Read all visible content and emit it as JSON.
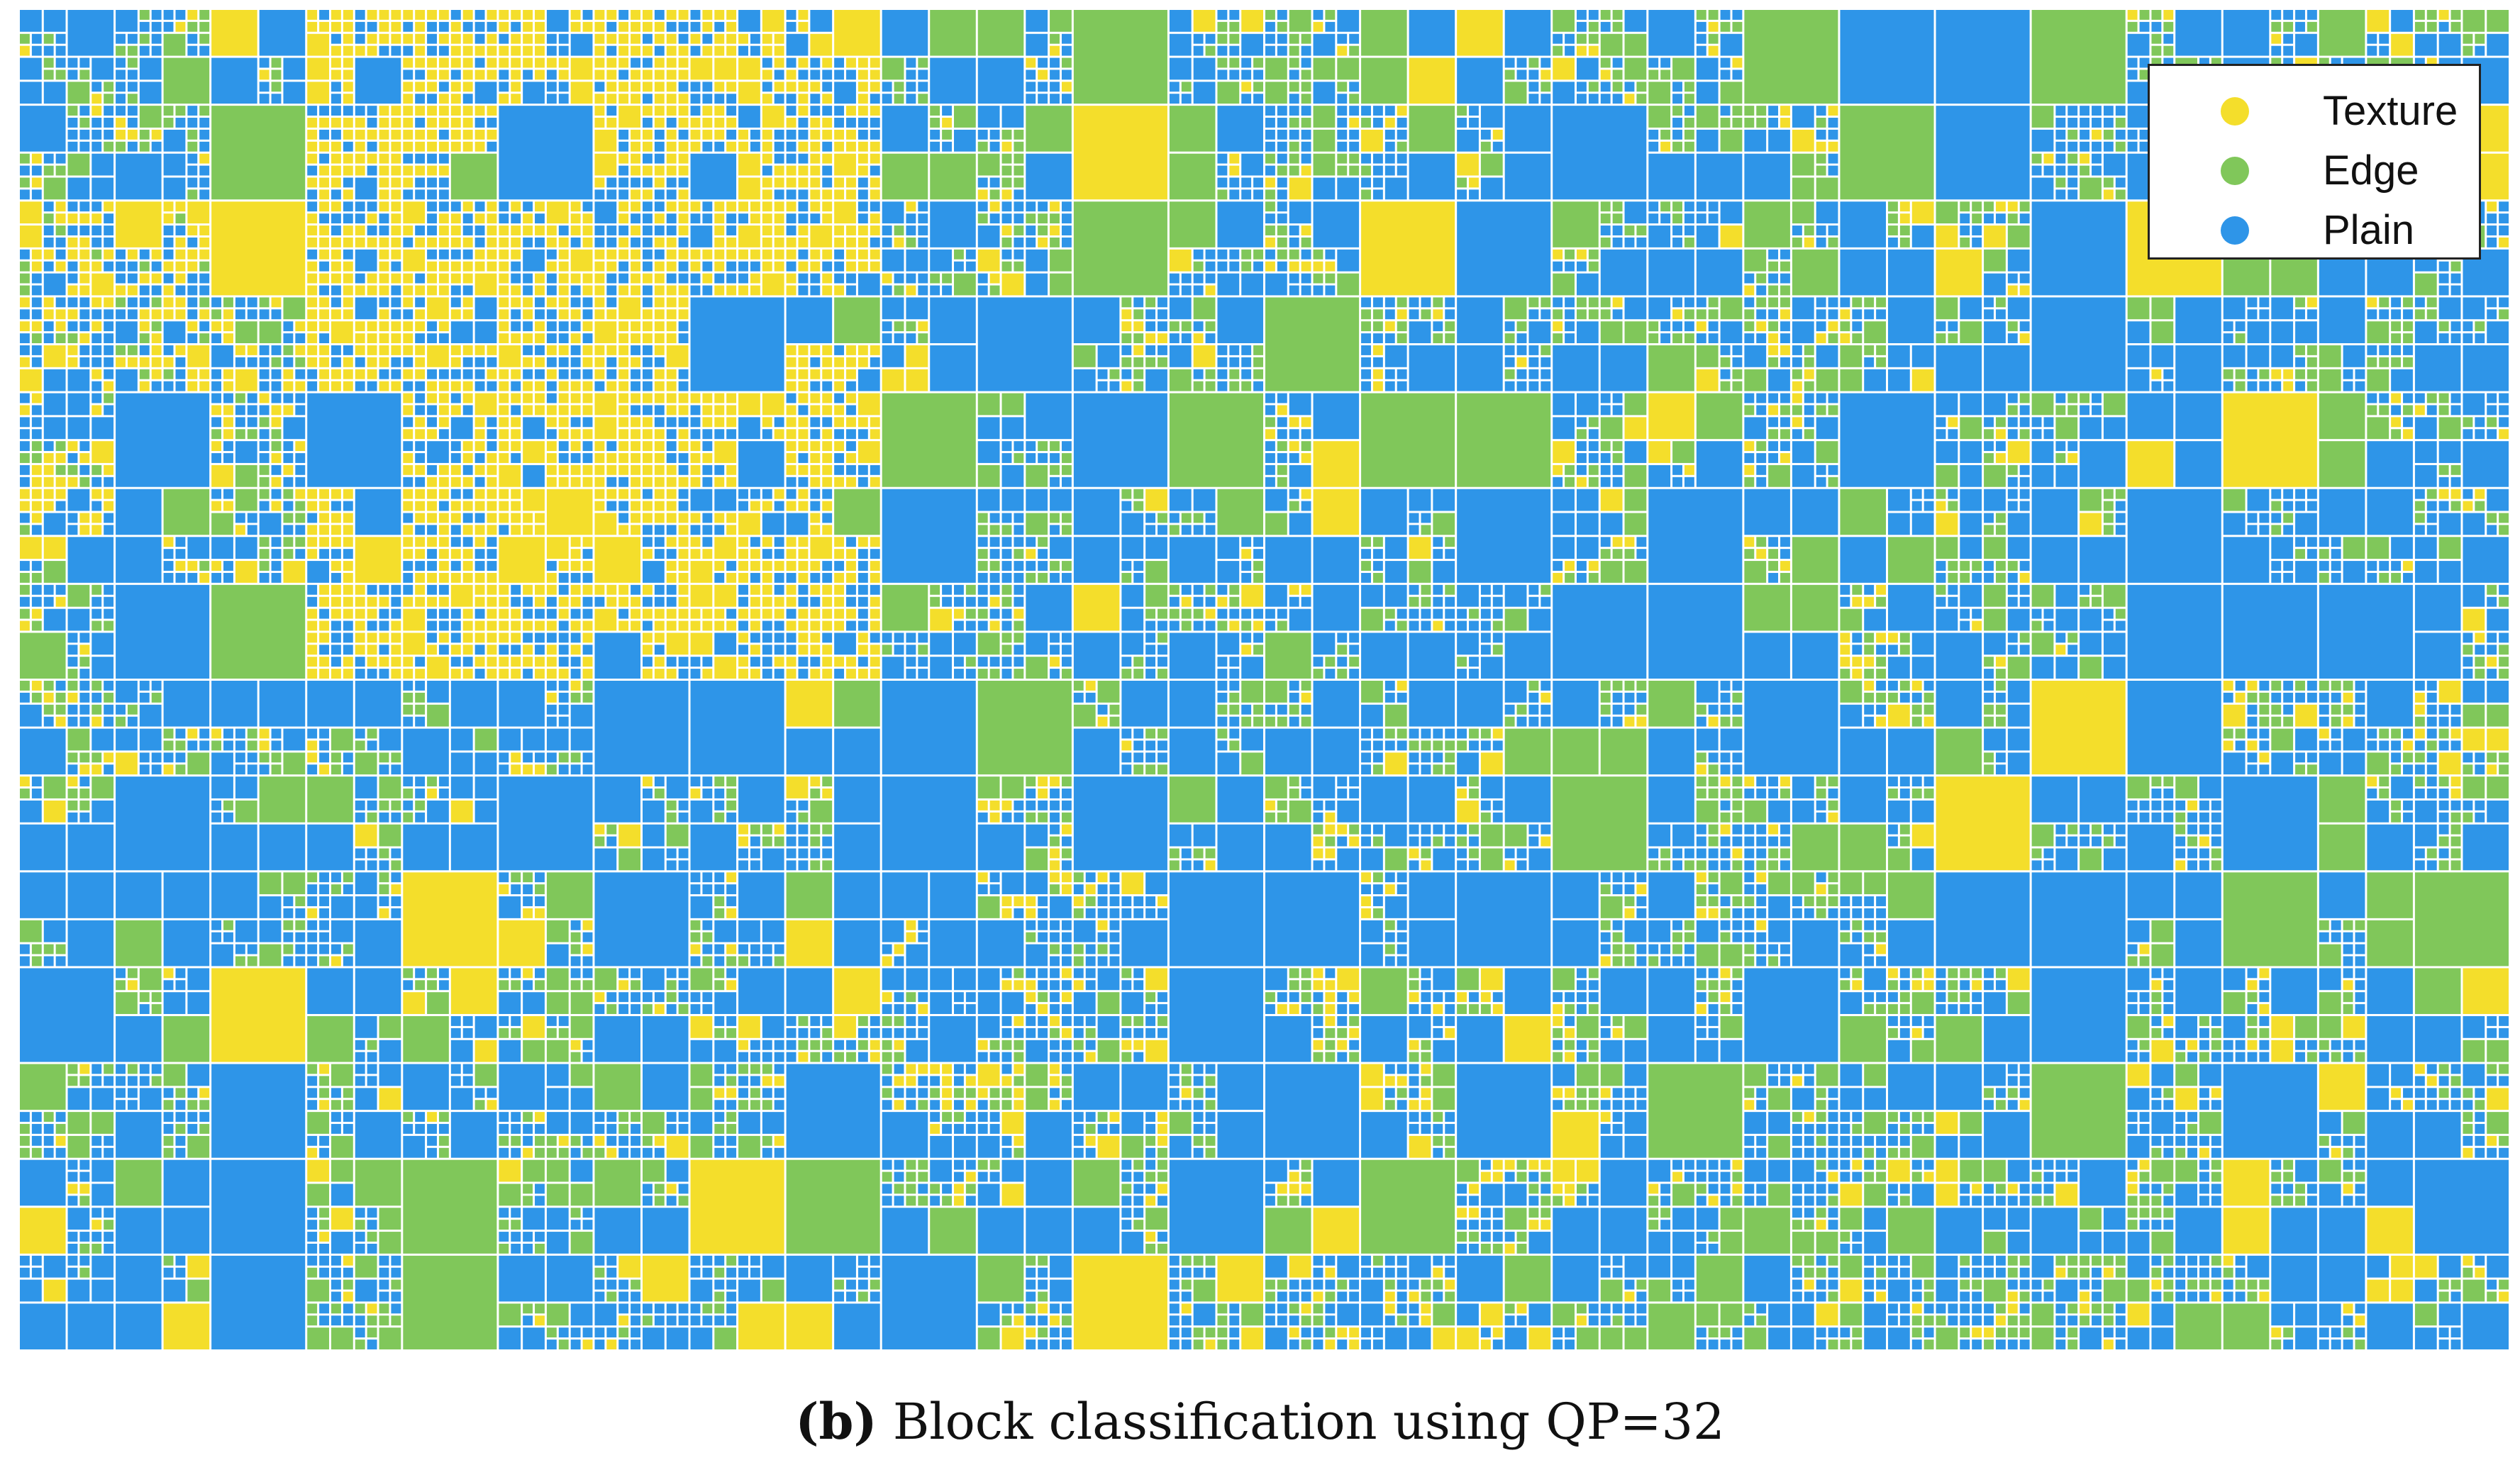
{
  "colors": {
    "texture": "#F4DE2B",
    "edge": "#80C75A",
    "plain": "#2E95E8",
    "grid_line": "#FFFFFF"
  },
  "grid": {
    "ctu_columns": 26,
    "ctu_rows": 14,
    "min_cells_per_ctu": 8
  },
  "legend": {
    "placement": "top-right",
    "items": [
      {
        "label": "Texture",
        "color": "#F4DE2B"
      },
      {
        "label": "Edge",
        "color": "#80C75A"
      },
      {
        "label": "Plain",
        "color": "#2E95E8"
      }
    ]
  },
  "caption": {
    "label": "(b)",
    "text": "Block classification using QP=32"
  }
}
